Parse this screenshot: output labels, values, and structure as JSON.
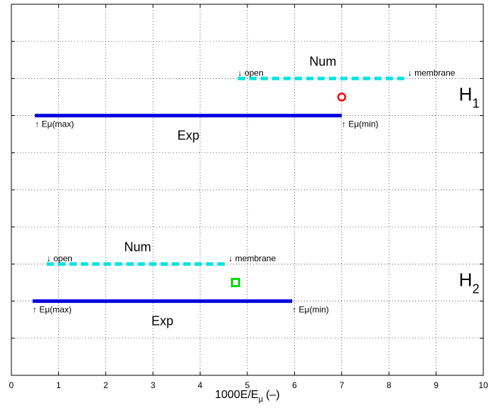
{
  "chart_data": {
    "type": "line",
    "title": "",
    "xlabel": "1000E/E",
    "xlabel_sub": "μ",
    "xlabel_unit": "(–)",
    "ylabel": "",
    "xlim": [
      0,
      10
    ],
    "ylim": [
      0,
      1
    ],
    "grid": true,
    "x_ticks": [
      0,
      1,
      2,
      3,
      4,
      5,
      6,
      7,
      8,
      9,
      10
    ],
    "x_tick_labels": [
      "0",
      "1",
      "2",
      "3",
      "4",
      "5",
      "6",
      "7",
      "8",
      "9",
      "10"
    ],
    "groups": [
      {
        "name": "H",
        "name_sub": "1",
        "label_x": 9.7,
        "label_y": 0.74,
        "num": {
          "label": "Num",
          "x": [
            4.8,
            8.4
          ],
          "y": 0.8,
          "color": "#00e5e5",
          "style": "dashed",
          "start_label": "open",
          "end_label": "membrane"
        },
        "exp": {
          "label": "Exp",
          "x": [
            0.5,
            7.0
          ],
          "y": 0.7,
          "color": "#0000e0",
          "style": "solid",
          "start_label": "Eμ(max)",
          "end_label": "Eμ(min)"
        },
        "marker": {
          "x": 7.0,
          "y": 0.75,
          "shape": "circle",
          "color": "#ff0000"
        }
      },
      {
        "name": "H",
        "name_sub": "2",
        "label_x": 9.7,
        "label_y": 0.24,
        "num": {
          "label": "Num",
          "x": [
            0.75,
            4.6
          ],
          "y": 0.3,
          "color": "#00e5e5",
          "style": "dashed",
          "start_label": "open",
          "end_label": "membrane"
        },
        "exp": {
          "label": "Exp",
          "x": [
            0.45,
            5.95
          ],
          "y": 0.2,
          "color": "#0000e0",
          "style": "solid",
          "start_label": "Eμ(max)",
          "end_label": "Eμ(min)"
        },
        "marker": {
          "x": 4.75,
          "y": 0.25,
          "shape": "square",
          "color": "#00dd00"
        }
      }
    ],
    "arrow_down": "↓",
    "arrow_up": "↑"
  }
}
